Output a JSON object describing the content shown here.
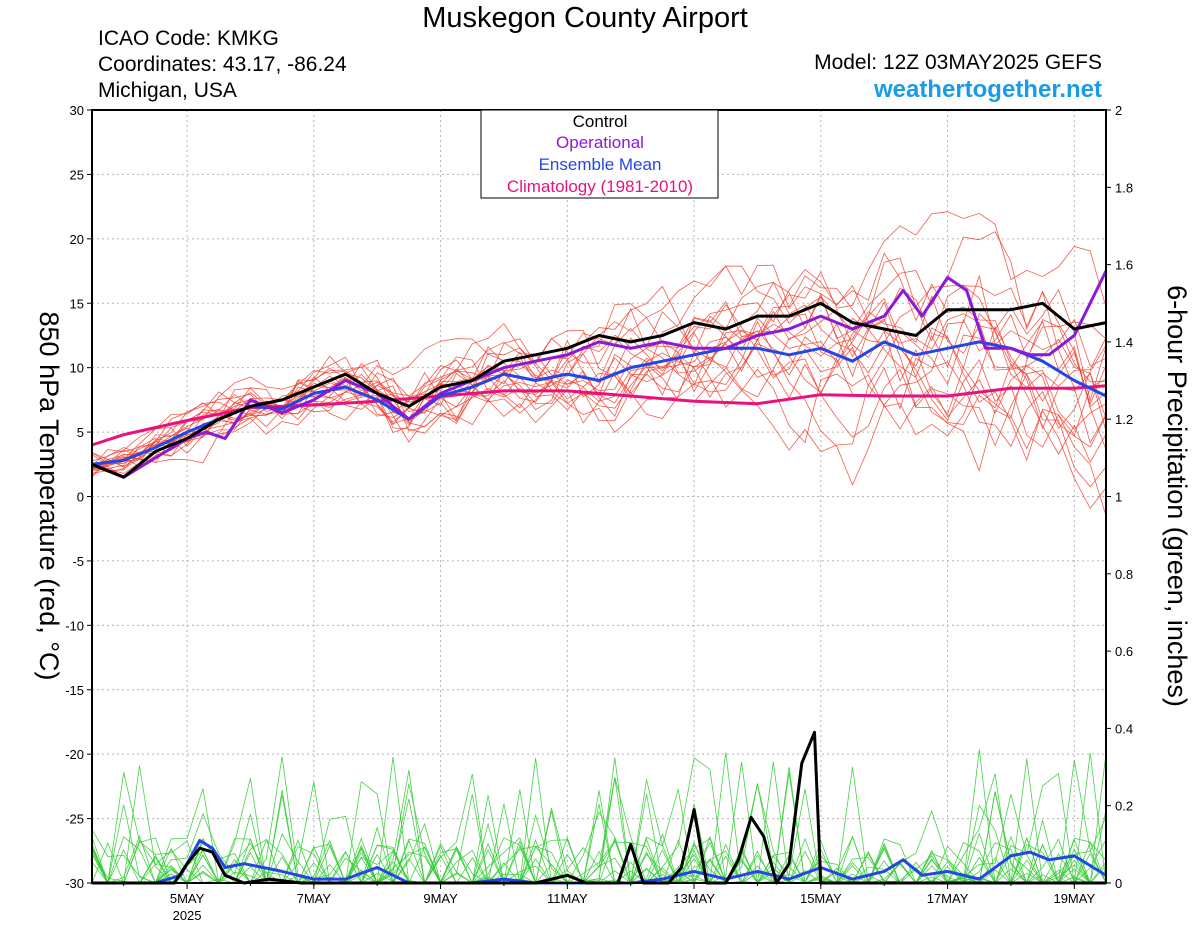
{
  "title": "Muskegon County Airport",
  "station": {
    "icao": "ICAO Code: KMKG",
    "coords": "Coordinates: 43.17, -86.24",
    "region": "Michigan, USA"
  },
  "model": "Model: 12Z 03MAY2025 GEFS",
  "site": "weathertogether.net",
  "colors": {
    "control": "#000000",
    "operational": "#8a1ad6",
    "ensemble_mean": "#2346e6",
    "climatology": "#e8127e",
    "members_temp": "#f0402f",
    "members_precip": "#33cc33"
  },
  "chart_data": {
    "type": "line",
    "xlabel": "",
    "ylabel": "850 hPa Temperature (red, °C)",
    "y2label": "6-hour Precipitation (green, inches)",
    "ylim": [
      -30,
      30
    ],
    "y2lim": [
      0,
      2
    ],
    "yticks": [
      30,
      25,
      20,
      15,
      10,
      5,
      0,
      -5,
      -10,
      -15,
      -20,
      -25,
      -30
    ],
    "y2ticks": [
      "2",
      "1.8",
      "1.6",
      "1.4",
      "1.2",
      "1",
      "0.8",
      "0.6",
      "0.4",
      "0.2",
      "0"
    ],
    "xlim": [
      3.5,
      19.5
    ],
    "xticks": [
      {
        "x": 5,
        "label": "5MAY",
        "sub": "2025"
      },
      {
        "x": 7,
        "label": "7MAY",
        "sub": ""
      },
      {
        "x": 9,
        "label": "9MAY",
        "sub": ""
      },
      {
        "x": 11,
        "label": "11MAY",
        "sub": ""
      },
      {
        "x": 13,
        "label": "13MAY",
        "sub": ""
      },
      {
        "x": 15,
        "label": "15MAY",
        "sub": ""
      },
      {
        "x": 17,
        "label": "17MAY",
        "sub": ""
      },
      {
        "x": 19,
        "label": "19MAY",
        "sub": ""
      }
    ],
    "grid": true,
    "legend": {
      "placement": "top-center",
      "entries": [
        {
          "name": "Control",
          "color": "#000000"
        },
        {
          "name": "Operational",
          "color": "#8a1ad6"
        },
        {
          "name": "Ensemble Mean",
          "color": "#2346e6"
        },
        {
          "name": "Climatology (1981-2010)",
          "color": "#e8127e"
        }
      ]
    },
    "series": [
      {
        "name": "Climatology (1981-2010)",
        "axis": "temp",
        "color": "#e8127e",
        "width": 3,
        "x": [
          3.5,
          4,
          5,
          6,
          7,
          8,
          9,
          10,
          11,
          12,
          13,
          14,
          15,
          16,
          17,
          18,
          19,
          19.5
        ],
        "y": [
          4.0,
          4.8,
          5.9,
          6.9,
          7.1,
          7.4,
          7.8,
          8.2,
          8.2,
          7.8,
          7.4,
          7.2,
          7.9,
          7.8,
          7.8,
          8.4,
          8.4,
          8.6
        ]
      },
      {
        "name": "Ensemble Mean",
        "axis": "temp",
        "color": "#2346e6",
        "width": 3,
        "x": [
          3.5,
          4,
          4.5,
          5,
          5.5,
          6,
          6.5,
          7,
          7.5,
          8,
          8.5,
          9,
          9.5,
          10,
          10.5,
          11,
          11.5,
          12,
          12.5,
          13,
          13.5,
          14,
          14.5,
          15,
          15.5,
          16,
          16.5,
          17,
          17.5,
          18,
          18.5,
          19,
          19.5
        ],
        "y": [
          2.5,
          2.8,
          3.8,
          5.0,
          6.0,
          7.0,
          6.8,
          8.0,
          8.5,
          7.5,
          6.0,
          7.8,
          8.5,
          9.5,
          9.0,
          9.5,
          9.0,
          10.0,
          10.5,
          11.0,
          11.5,
          11.5,
          11.0,
          11.5,
          10.5,
          12.0,
          11.0,
          11.5,
          12.0,
          11.5,
          10.5,
          9.0,
          7.8
        ]
      },
      {
        "name": "Operational",
        "axis": "temp",
        "color": "#8a1ad6",
        "width": 3,
        "x": [
          3.5,
          4,
          4.5,
          5,
          5.3,
          5.6,
          6,
          6.5,
          7,
          7.5,
          8,
          8.5,
          9,
          9.5,
          10,
          10.5,
          11,
          11.5,
          12,
          12.5,
          13,
          13.5,
          14,
          14.5,
          15,
          15.5,
          16,
          16.3,
          16.6,
          17,
          17.3,
          17.6,
          18,
          18.3,
          18.6,
          19,
          19.5
        ],
        "y": [
          2.5,
          1.5,
          3.0,
          4.5,
          5.0,
          4.5,
          7.5,
          6.5,
          7.5,
          9.0,
          8.0,
          6.0,
          8.0,
          9.0,
          10.0,
          10.5,
          11.0,
          12.0,
          11.5,
          12.0,
          11.5,
          11.5,
          12.5,
          13.0,
          14.0,
          13.0,
          14.0,
          16.0,
          14.0,
          17.0,
          16.0,
          11.5,
          11.5,
          11.0,
          11.0,
          12.5,
          17.5
        ]
      },
      {
        "name": "Control",
        "axis": "temp",
        "color": "#000000",
        "width": 3,
        "x": [
          3.5,
          4,
          4.5,
          5,
          5.5,
          6,
          6.5,
          7,
          7.5,
          8,
          8.5,
          9,
          9.5,
          10,
          10.5,
          11,
          11.5,
          12,
          12.5,
          13,
          13.5,
          14,
          14.5,
          15,
          15.5,
          16,
          16.5,
          17,
          17.5,
          18,
          18.5,
          19,
          19.5
        ],
        "y": [
          2.5,
          1.5,
          3.5,
          4.5,
          6.0,
          7.0,
          7.5,
          8.5,
          9.5,
          8.0,
          7.0,
          8.5,
          9.0,
          10.5,
          11.0,
          11.5,
          12.5,
          12.0,
          12.5,
          13.5,
          13.0,
          14.0,
          14.0,
          15.0,
          13.5,
          13.0,
          12.5,
          14.5,
          14.5,
          14.5,
          15.0,
          13.0,
          13.5
        ]
      },
      {
        "name": "Ensemble Mean",
        "axis": "precip",
        "color": "#2346e6",
        "width": 3,
        "x": [
          3.5,
          4,
          4.5,
          4.9,
          5.2,
          5.4,
          5.6,
          5.9,
          6.2,
          6.5,
          7,
          7.5,
          8,
          8.5,
          9,
          9.5,
          10,
          10.5,
          11,
          11.5,
          12,
          12.5,
          13,
          13.5,
          14,
          14.5,
          15,
          15.5,
          16,
          16.3,
          16.6,
          17,
          17.5,
          18,
          18.3,
          18.6,
          19,
          19.5
        ],
        "y": [
          0.0,
          0.0,
          0.0,
          0.02,
          0.11,
          0.09,
          0.04,
          0.05,
          0.04,
          0.03,
          0.01,
          0.01,
          0.04,
          0.0,
          0.0,
          0.0,
          0.01,
          0.0,
          0.0,
          0.0,
          0.0,
          0.01,
          0.03,
          0.01,
          0.03,
          0.01,
          0.04,
          0.01,
          0.03,
          0.06,
          0.02,
          0.03,
          0.01,
          0.07,
          0.08,
          0.06,
          0.07,
          0.02
        ]
      },
      {
        "name": "Control",
        "axis": "precip",
        "color": "#000000",
        "width": 3,
        "x": [
          3.5,
          4.8,
          5.0,
          5.2,
          5.4,
          5.6,
          5.9,
          6.3,
          6.8,
          7.5,
          10.5,
          11.0,
          11.3,
          11.8,
          12.0,
          12.2,
          12.4,
          12.6,
          12.8,
          13.0,
          13.2,
          13.5,
          13.7,
          13.9,
          14.1,
          14.3,
          14.5,
          14.7,
          14.9,
          15.0,
          15.2,
          19.5
        ],
        "y": [
          0.0,
          0.0,
          0.05,
          0.09,
          0.08,
          0.02,
          0.0,
          0.01,
          0.0,
          0.0,
          0.0,
          0.02,
          0.0,
          0.0,
          0.1,
          0.0,
          0.0,
          0.0,
          0.04,
          0.19,
          0.0,
          0.0,
          0.06,
          0.17,
          0.12,
          0.0,
          0.05,
          0.31,
          0.39,
          0.0,
          0.0,
          0.0
        ]
      }
    ]
  }
}
